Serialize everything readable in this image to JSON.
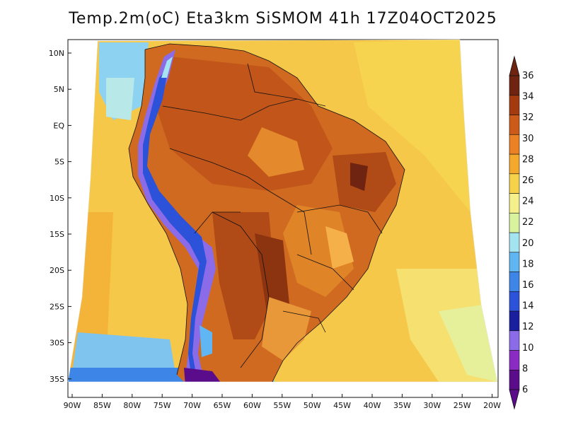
{
  "title": "Temp.2m(oC) Eta3km SiSMOM 41h 17Z04OCT2025",
  "latitude_labels": [
    "10N",
    "5N",
    "EQ",
    "5S",
    "10S",
    "15S",
    "20S",
    "25S",
    "30S",
    "35S"
  ],
  "longitude_labels": [
    "90W",
    "85W",
    "80W",
    "75W",
    "70W",
    "65W",
    "60W",
    "55W",
    "50W",
    "45W",
    "40W",
    "35W",
    "30W",
    "25W",
    "20W"
  ],
  "colorbar": {
    "labels": [
      "6",
      "8",
      "10",
      "12",
      "14",
      "16",
      "18",
      "20",
      "22",
      "24",
      "26",
      "28",
      "30",
      "32",
      "34",
      "36"
    ],
    "colors": [
      "#5a0c8a",
      "#8a2cc4",
      "#8c6be8",
      "#1a1f9e",
      "#2b52d8",
      "#3d86e8",
      "#5fb6f2",
      "#a4e4f0",
      "#d8f29e",
      "#f6f08c",
      "#f6d24a",
      "#f4a82c",
      "#ec8024",
      "#cc5a18",
      "#a33a10",
      "#6e2410"
    ]
  },
  "icon": {
    "colorbar_arrows": "triangle-arrow-icon"
  }
}
